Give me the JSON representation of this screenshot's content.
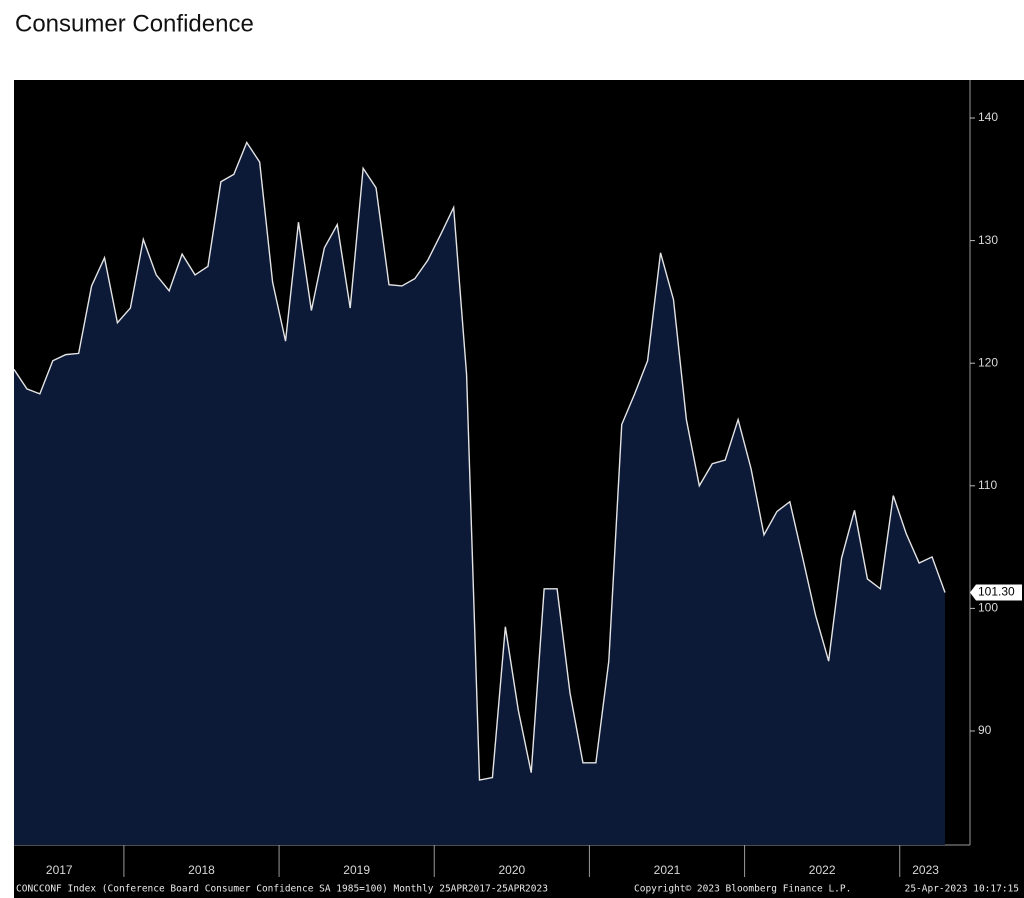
{
  "chart_data": {
    "type": "area",
    "title": "Consumer Confidence",
    "categories": [
      null,
      null,
      null,
      null,
      "2017",
      null,
      null,
      null,
      null,
      null,
      null,
      null,
      null,
      null,
      null,
      "2018",
      null,
      null,
      null,
      null,
      null,
      null,
      null,
      null,
      null,
      null,
      null,
      "2019",
      null,
      null,
      null,
      null,
      null,
      null,
      null,
      null,
      null,
      null,
      null,
      "2020",
      null,
      null,
      null,
      null,
      null,
      null,
      null,
      null,
      null,
      null,
      null,
      "2021",
      null,
      null,
      null,
      null,
      null,
      null,
      null,
      null,
      null,
      null,
      null,
      "2022",
      null,
      null,
      null,
      null,
      null,
      null,
      null,
      "2023",
      null
    ],
    "values": [
      119.5,
      117.9,
      117.5,
      120.2,
      120.7,
      120.8,
      126.3,
      128.6,
      123.3,
      124.5,
      130.1,
      127.2,
      125.9,
      128.9,
      127.2,
      127.9,
      134.8,
      135.4,
      138.0,
      136.4,
      126.6,
      121.8,
      131.5,
      124.3,
      129.4,
      131.3,
      124.5,
      135.9,
      134.3,
      126.4,
      126.3,
      126.9,
      128.4,
      130.5,
      132.7,
      119.1,
      86.0,
      86.2,
      98.5,
      91.7,
      86.6,
      101.6,
      101.6,
      93.1,
      87.4,
      87.4,
      95.7,
      115.0,
      117.5,
      120.2,
      129.0,
      125.2,
      115.4,
      110.0,
      111.8,
      112.1,
      115.4,
      111.4,
      106.0,
      107.9,
      108.7,
      104.1,
      99.4,
      95.7,
      104.1,
      108.0,
      102.4,
      101.6,
      109.2,
      106.1,
      103.7,
      104.2,
      101.3
    ],
    "last_value_label": "101.30",
    "fill_color": "#0c1a38",
    "line_color": "#e4e4e4",
    "ylim": [
      80.7,
      143.1
    ],
    "yticks": [
      90,
      100,
      110,
      120,
      130,
      140
    ],
    "footer": {
      "security": "CONCCONF Index (Conference Board Consumer Confidence SA 1985=100) Monthly 25APR2017-25APR2023",
      "copyright": "Copyright© 2023 Bloomberg Finance L.P.",
      "timestamp": "25-Apr-2023 10:17:15"
    }
  }
}
